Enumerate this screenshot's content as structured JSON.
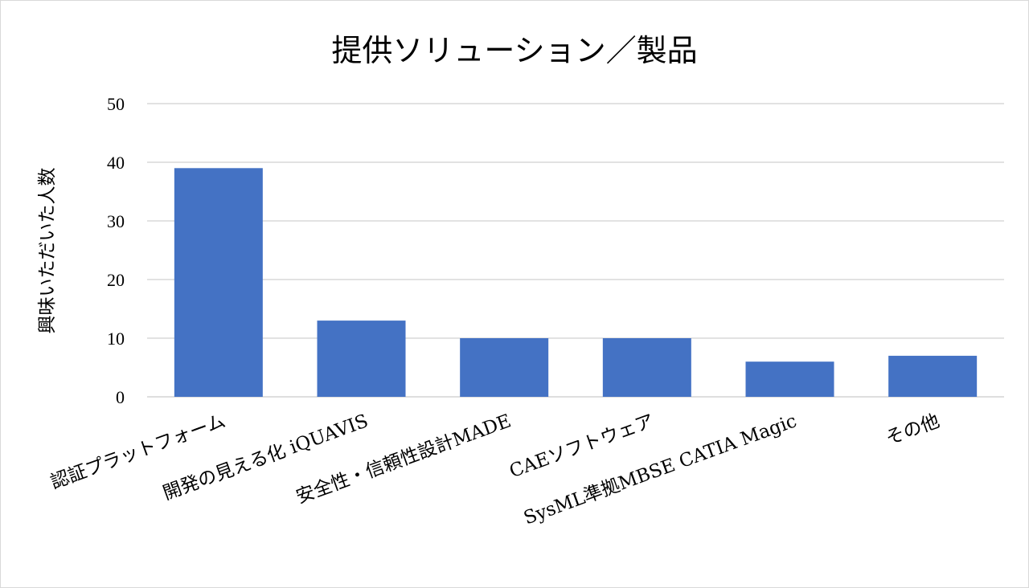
{
  "chart_data": {
    "type": "bar",
    "title": "提供ソリューション／製品",
    "xlabel": "",
    "ylabel": "興味いただいた人数",
    "categories": [
      "認証プラットフォーム",
      "開発の見える化 iQUAVIS",
      "安全性・信頼性設計MADE",
      "CAEソフトウェア",
      "SysML準拠MBSE CATIA Magic",
      "その他"
    ],
    "values": [
      39,
      13,
      10,
      10,
      6,
      7
    ],
    "ylim": [
      0,
      50
    ],
    "yticks": [
      0,
      10,
      20,
      30,
      40,
      50
    ],
    "grid": true,
    "bar_color": "#4472c4",
    "grid_color": "#d9d9d9"
  }
}
